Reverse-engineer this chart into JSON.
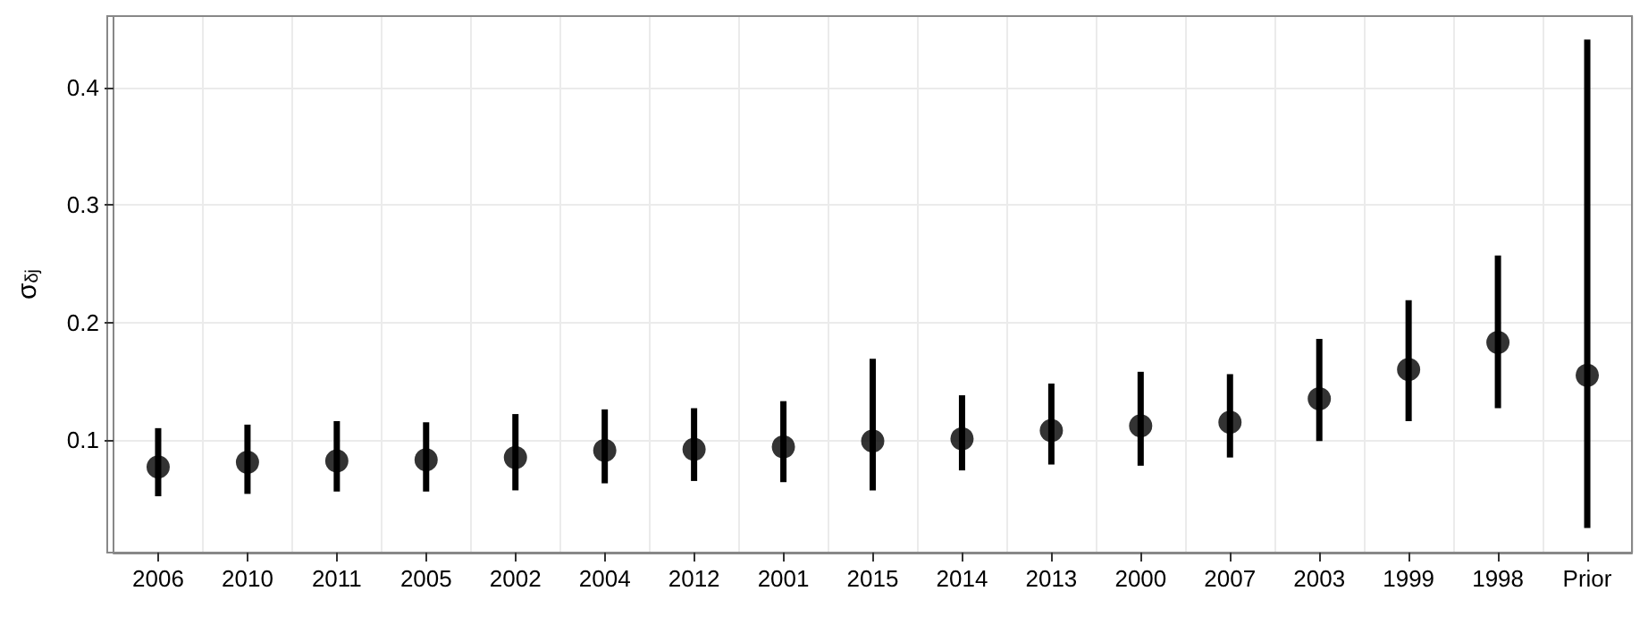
{
  "chart_data": {
    "type": "scatter",
    "ylabel": "σ$_{δj}$",
    "categories": [
      "2006",
      "2010",
      "2011",
      "2005",
      "2002",
      "2004",
      "2012",
      "2001",
      "2015",
      "2014",
      "2013",
      "2000",
      "2007",
      "2003",
      "1999",
      "1998",
      "Prior"
    ],
    "series": [
      {
        "color": "#000000",
        "values": [
          0.077,
          0.081,
          0.082,
          0.083,
          0.085,
          0.091,
          0.092,
          0.094,
          0.099,
          0.101,
          0.108,
          0.112,
          0.115,
          0.135,
          0.16,
          0.183,
          0.155
        ],
        "errors": [
          [
            0.052,
            0.11
          ],
          [
            0.054,
            0.113
          ],
          [
            0.056,
            0.116
          ],
          [
            0.056,
            0.115
          ],
          [
            0.057,
            0.122
          ],
          [
            0.063,
            0.126
          ],
          [
            0.065,
            0.127
          ],
          [
            0.064,
            0.133
          ],
          [
            0.057,
            0.169
          ],
          [
            0.074,
            0.138
          ],
          [
            0.079,
            0.148
          ],
          [
            0.078,
            0.158
          ],
          [
            0.085,
            0.156
          ],
          [
            0.099,
            0.186
          ],
          [
            0.116,
            0.219
          ],
          [
            0.127,
            0.257
          ],
          [
            0.025,
            0.441
          ]
        ]
      }
    ],
    "ylim": [
      0.004,
      0.461
    ],
    "yticks": [
      0.1,
      0.2,
      0.3,
      0.4
    ],
    "grid": true,
    "marker": "circle"
  }
}
